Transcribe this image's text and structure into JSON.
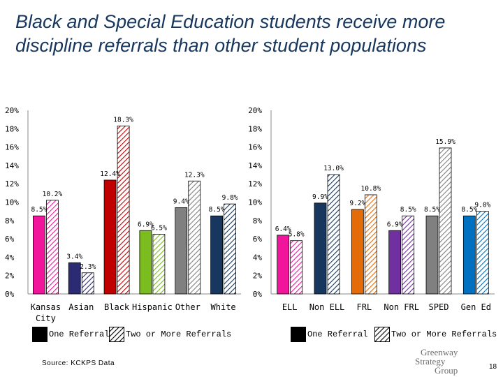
{
  "slide": {
    "title": "Black and Special Education students receive more discipline referrals than other student populations",
    "source": "Source: KCKPS Data",
    "page_number": "18",
    "logo_lines": [
      "Greenway",
      "Strategy",
      "Group"
    ]
  },
  "legend": {
    "one_label": "One Referral",
    "two_label": "Two or More Referrals"
  },
  "chart_data": [
    {
      "type": "bar",
      "categories": [
        "Kansas City",
        "Asian",
        "Black",
        "Hispanic",
        "Other",
        "White"
      ],
      "series": [
        {
          "name": "One Referral",
          "values": [
            8.5,
            3.4,
            12.4,
            6.9,
            9.4,
            8.5
          ],
          "value_labels": [
            "8.5%",
            "3.4%",
            "12.4%",
            "6.9%",
            "9.4%",
            "8.5%"
          ],
          "colors": [
            "#f0159a",
            "#2b2b73",
            "#c00000",
            "#7bbc1f",
            "#808080",
            "#17375e"
          ]
        },
        {
          "name": "Two or More Referrals",
          "values": [
            10.2,
            2.3,
            18.3,
            6.5,
            12.3,
            9.8
          ],
          "value_labels": [
            "10.2%",
            "2.3%",
            "18.3%",
            "6.5%",
            "12.3%",
            "9.8%"
          ],
          "colors": [
            "#f0159a",
            "#2b2b73",
            "#c00000",
            "#7bbc1f",
            "#808080",
            "#17375e"
          ]
        }
      ],
      "ylim": [
        0,
        20
      ],
      "yticks": [
        "0%",
        "2%",
        "4%",
        "6%",
        "8%",
        "10%",
        "12%",
        "14%",
        "16%",
        "18%",
        "20%"
      ],
      "grid": false
    },
    {
      "type": "bar",
      "categories": [
        "ELL",
        "Non ELL",
        "FRL",
        "Non FRL",
        "SPED",
        "Gen Ed"
      ],
      "series": [
        {
          "name": "One Referral",
          "values": [
            6.4,
            9.9,
            9.2,
            6.9,
            8.5,
            8.5
          ],
          "value_labels": [
            "6.4%",
            "9.9%",
            "9.2%",
            "6.9%",
            "8.5%",
            "8.5%"
          ],
          "colors": [
            "#f0159a",
            "#17375e",
            "#e36c09",
            "#7030a0",
            "#808080",
            "#0070c0"
          ]
        },
        {
          "name": "Two or More Referrals",
          "values": [
            5.8,
            13.0,
            10.8,
            8.5,
            15.9,
            9.0
          ],
          "value_labels": [
            "5.8%",
            "13.0%",
            "10.8%",
            "8.5%",
            "15.9%",
            "9.0%"
          ],
          "colors": [
            "#f0159a",
            "#17375e",
            "#e36c09",
            "#7030a0",
            "#808080",
            "#0070c0"
          ]
        }
      ],
      "ylim": [
        0,
        20
      ],
      "yticks": [
        "0%",
        "2%",
        "4%",
        "6%",
        "8%",
        "10%",
        "12%",
        "14%",
        "16%",
        "18%",
        "20%"
      ],
      "grid": false
    }
  ]
}
